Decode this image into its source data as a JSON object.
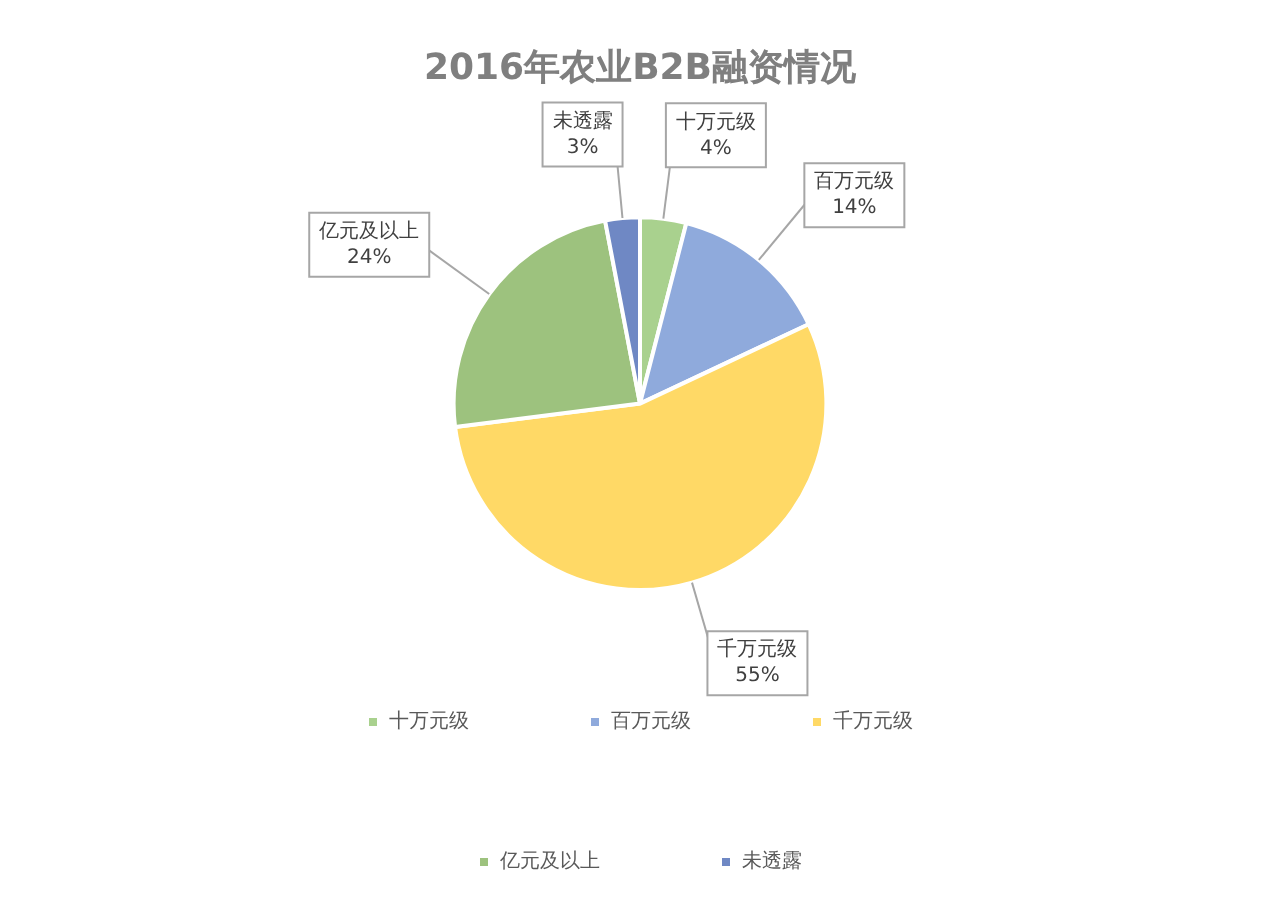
{
  "chart_data": {
    "type": "pie",
    "title": "2016年农业B2B融资情况",
    "categories": [
      "十万元级",
      "百万元级",
      "千万元级",
      "亿元及以上",
      "未透露"
    ],
    "values": [
      4,
      14,
      55,
      24,
      3
    ],
    "value_labels": [
      "4%",
      "14%",
      "55%",
      "24%",
      "3%"
    ],
    "colors": [
      "#a9d18e",
      "#8faadc",
      "#ffd966",
      "#9dc27e",
      "#6f88c4"
    ],
    "legend": "bottom"
  }
}
